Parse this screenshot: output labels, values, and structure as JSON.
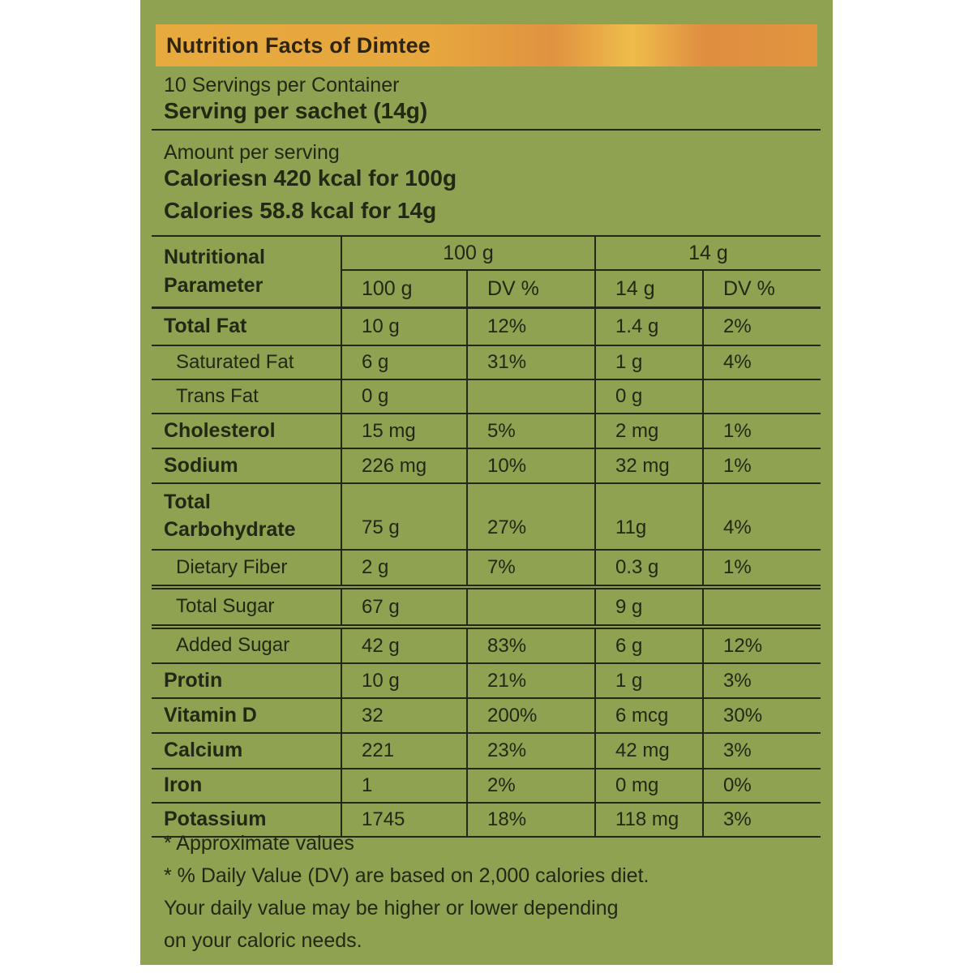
{
  "header": {
    "title": "Nutrition Facts of Dimtee",
    "servings_per_container": "10 Servings per Container",
    "serving_per_sachet": "Serving per sachet (14g)"
  },
  "calories": {
    "amount_label": "Amount per serving",
    "line_100g": "Caloriesn 420 kcal for 100g",
    "line_14g": "Calories 58.8 kcal for 14g"
  },
  "table": {
    "param_header_line1": "Nutritional",
    "param_header_line2": "Parameter",
    "group_headers": [
      "100 g",
      "14 g"
    ],
    "sub_headers": [
      "100 g",
      "DV %",
      "14 g",
      "DV %"
    ],
    "rows": [
      {
        "label": "Total Fat",
        "sub": false,
        "cells": [
          "10 g",
          "12%",
          "1.4 g",
          "2%"
        ]
      },
      {
        "label": "Saturated Fat",
        "sub": true,
        "cells": [
          "6 g",
          "31%",
          "1 g",
          "4%"
        ]
      },
      {
        "label": "Trans Fat",
        "sub": true,
        "cells": [
          "0 g",
          "",
          "0 g",
          ""
        ]
      },
      {
        "label": "Cholesterol",
        "sub": false,
        "cells": [
          "15 mg",
          "5%",
          "2 mg",
          "1%"
        ]
      },
      {
        "label": "Sodium",
        "sub": false,
        "cells": [
          "226 mg",
          "10%",
          "32 mg",
          "1%"
        ]
      },
      {
        "label": "Total Carbohydrate",
        "sub": false,
        "cells": [
          "75 g",
          "27%",
          "11g",
          "4%"
        ]
      },
      {
        "label": "Dietary Fiber",
        "sub": true,
        "cells": [
          "2 g",
          "7%",
          "0.3 g",
          "1%"
        ]
      },
      {
        "label": "Total Sugar",
        "sub": true,
        "cells": [
          "67 g",
          "",
          "9 g",
          ""
        ]
      },
      {
        "label": "Added Sugar",
        "sub": true,
        "cells": [
          "42 g",
          "83%",
          "6 g",
          "12%"
        ]
      },
      {
        "label": "Protin",
        "sub": false,
        "cells": [
          "10 g",
          "21%",
          "1 g",
          "3%"
        ]
      },
      {
        "label": "Vitamin D",
        "sub": false,
        "cells": [
          "32",
          "200%",
          "6 mcg",
          "30%"
        ]
      },
      {
        "label": "Calcium",
        "sub": false,
        "cells": [
          "221",
          "23%",
          "42 mg",
          "3%"
        ]
      },
      {
        "label": "Iron",
        "sub": false,
        "cells": [
          "1",
          "2%",
          "0 mg",
          "0%"
        ]
      },
      {
        "label": "Potassium",
        "sub": false,
        "cells": [
          "1745",
          "18%",
          "118 mg",
          "3%"
        ]
      }
    ]
  },
  "footnotes": {
    "lines": [
      "* Approximate values",
      "* % Daily Value (DV) are based on 2,000 calories diet.",
      "Your daily value may be higher or lower depending",
      "on your caloric needs."
    ]
  },
  "colors": {
    "panel_green": "#8ea252",
    "bar_orange_start": "#e7aa3e",
    "bar_orange_deep": "#e09240",
    "bar_orange_light": "#eebd4b",
    "text": "#212813"
  }
}
